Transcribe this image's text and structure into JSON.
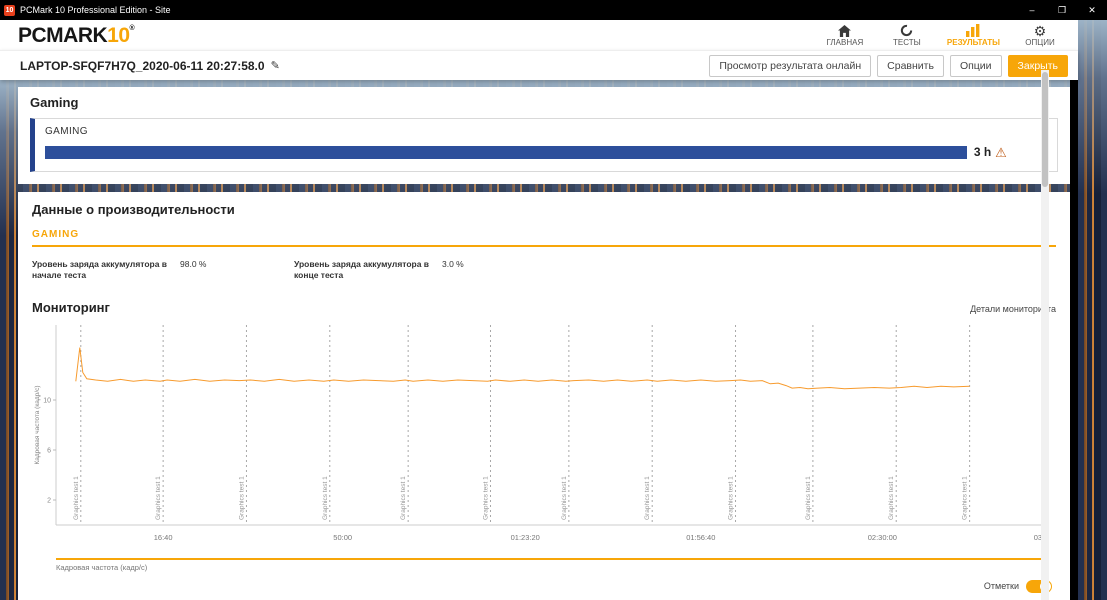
{
  "titlebar": {
    "title": "PCMark 10 Professional Edition - Site",
    "icon_text": "10",
    "minimize": "–",
    "maximize": "❐",
    "close": "✕"
  },
  "header": {
    "logo_main": "PCMARK",
    "logo_num": "10",
    "logo_reg": "®",
    "nav": [
      {
        "label": "ГЛАВНАЯ",
        "icon": "home-icon",
        "active": false
      },
      {
        "label": "ТЕСТЫ",
        "icon": "tests-icon",
        "active": false
      },
      {
        "label": "РЕЗУЛЬТАТЫ",
        "icon": "results-icon",
        "active": true
      },
      {
        "label": "ОПЦИИ",
        "icon": "gear-icon",
        "active": false
      }
    ]
  },
  "toolbar": {
    "result_title": "LAPTOP-SFQF7H7Q_2020-06-11 20:27:58.0",
    "edit_icon": "✎",
    "buttons": [
      {
        "label": "Просмотр результата онлайн"
      },
      {
        "label": "Сравнить"
      },
      {
        "label": "Опции"
      },
      {
        "label": "Закрыть"
      }
    ]
  },
  "gaming_section": {
    "heading": "Gaming",
    "card_label": "GAMING",
    "duration": "3 h",
    "warning_icon": "⚠",
    "progress_pct": 92,
    "bar_color": "#2d4f9b"
  },
  "performance": {
    "heading": "Данные о производительности",
    "subheading": "GAMING",
    "metrics": [
      {
        "label": "Уровень заряда аккумулятора в начале теста",
        "value": "98.0 %"
      },
      {
        "label": "Уровень заряда аккумулятора в конце теста",
        "value": "3.0 %"
      }
    ]
  },
  "monitoring": {
    "heading": "Мониторинг",
    "details_link": "Детали мониторинга",
    "legend_label": "Кадровая частота (кадр/с)",
    "markers_label": "Отметки",
    "toggle_on": true
  },
  "chart_data": {
    "type": "line",
    "title": "",
    "xlabel": "",
    "ylabel": "Кадровая частота (кадр/с)",
    "ylim": [
      0,
      16
    ],
    "yticks": [
      2,
      6,
      10
    ],
    "grid": false,
    "legend_position": "bottom",
    "xticks": [
      {
        "pos": 0.108,
        "label": "16:40"
      },
      {
        "pos": 0.289,
        "label": "50:00"
      },
      {
        "pos": 0.473,
        "label": "01:23:20"
      },
      {
        "pos": 0.65,
        "label": "01:56:40"
      },
      {
        "pos": 0.833,
        "label": "02:30:00"
      },
      {
        "pos": 0.993,
        "label": "03:0"
      }
    ],
    "markers": [
      {
        "pos": 0.025,
        "label": "Graphics test 1"
      },
      {
        "pos": 0.108,
        "label": "Graphics test 1"
      },
      {
        "pos": 0.192,
        "label": "Graphics test 1"
      },
      {
        "pos": 0.276,
        "label": "Graphics test 1"
      },
      {
        "pos": 0.355,
        "label": "Graphics test 1"
      },
      {
        "pos": 0.438,
        "label": "Graphics test 1"
      },
      {
        "pos": 0.517,
        "label": "Graphics test 1"
      },
      {
        "pos": 0.601,
        "label": "Graphics test 1"
      },
      {
        "pos": 0.685,
        "label": "Graphics test 1"
      },
      {
        "pos": 0.763,
        "label": "Graphics test 1"
      },
      {
        "pos": 0.847,
        "label": "Graphics test 1"
      },
      {
        "pos": 0.921,
        "label": "Graphics test 1"
      }
    ],
    "series": [
      {
        "name": "Кадровая частота (кадр/с)",
        "color": "#f79b2e",
        "points": [
          [
            0.02,
            11.5
          ],
          [
            0.024,
            14.2
          ],
          [
            0.027,
            12.2
          ],
          [
            0.031,
            11.7
          ],
          [
            0.04,
            11.6
          ],
          [
            0.052,
            11.5
          ],
          [
            0.065,
            11.65
          ],
          [
            0.078,
            11.5
          ],
          [
            0.09,
            11.6
          ],
          [
            0.105,
            11.5
          ],
          [
            0.112,
            11.6
          ],
          [
            0.125,
            11.5
          ],
          [
            0.14,
            11.65
          ],
          [
            0.155,
            11.5
          ],
          [
            0.17,
            11.6
          ],
          [
            0.185,
            11.55
          ],
          [
            0.196,
            11.6
          ],
          [
            0.21,
            11.5
          ],
          [
            0.225,
            11.65
          ],
          [
            0.24,
            11.5
          ],
          [
            0.255,
            11.6
          ],
          [
            0.27,
            11.5
          ],
          [
            0.28,
            11.6
          ],
          [
            0.295,
            11.5
          ],
          [
            0.31,
            11.6
          ],
          [
            0.325,
            11.55
          ],
          [
            0.34,
            11.5
          ],
          [
            0.352,
            11.6
          ],
          [
            0.36,
            11.5
          ],
          [
            0.375,
            11.6
          ],
          [
            0.39,
            11.5
          ],
          [
            0.405,
            11.6
          ],
          [
            0.42,
            11.55
          ],
          [
            0.435,
            11.5
          ],
          [
            0.443,
            11.6
          ],
          [
            0.458,
            11.5
          ],
          [
            0.472,
            11.6
          ],
          [
            0.486,
            11.5
          ],
          [
            0.5,
            11.6
          ],
          [
            0.514,
            11.5
          ],
          [
            0.522,
            11.55
          ],
          [
            0.537,
            11.6
          ],
          [
            0.552,
            11.5
          ],
          [
            0.566,
            11.6
          ],
          [
            0.58,
            11.5
          ],
          [
            0.596,
            11.6
          ],
          [
            0.606,
            11.5
          ],
          [
            0.62,
            11.6
          ],
          [
            0.635,
            11.5
          ],
          [
            0.65,
            11.6
          ],
          [
            0.665,
            11.5
          ],
          [
            0.68,
            11.55
          ],
          [
            0.69,
            11.6
          ],
          [
            0.7,
            11.5
          ],
          [
            0.712,
            11.55
          ],
          [
            0.72,
            11.3
          ],
          [
            0.728,
            11.35
          ],
          [
            0.736,
            11.15
          ],
          [
            0.742,
            10.95
          ],
          [
            0.75,
            11.0
          ],
          [
            0.758,
            10.9
          ],
          [
            0.768,
            10.95
          ],
          [
            0.78,
            11.0
          ],
          [
            0.795,
            10.9
          ],
          [
            0.81,
            10.95
          ],
          [
            0.825,
            11.0
          ],
          [
            0.84,
            10.95
          ],
          [
            0.852,
            11.0
          ],
          [
            0.865,
            11.1
          ],
          [
            0.878,
            11.0
          ],
          [
            0.892,
            11.1
          ],
          [
            0.905,
            11.05
          ],
          [
            0.921,
            11.1
          ]
        ]
      }
    ]
  }
}
